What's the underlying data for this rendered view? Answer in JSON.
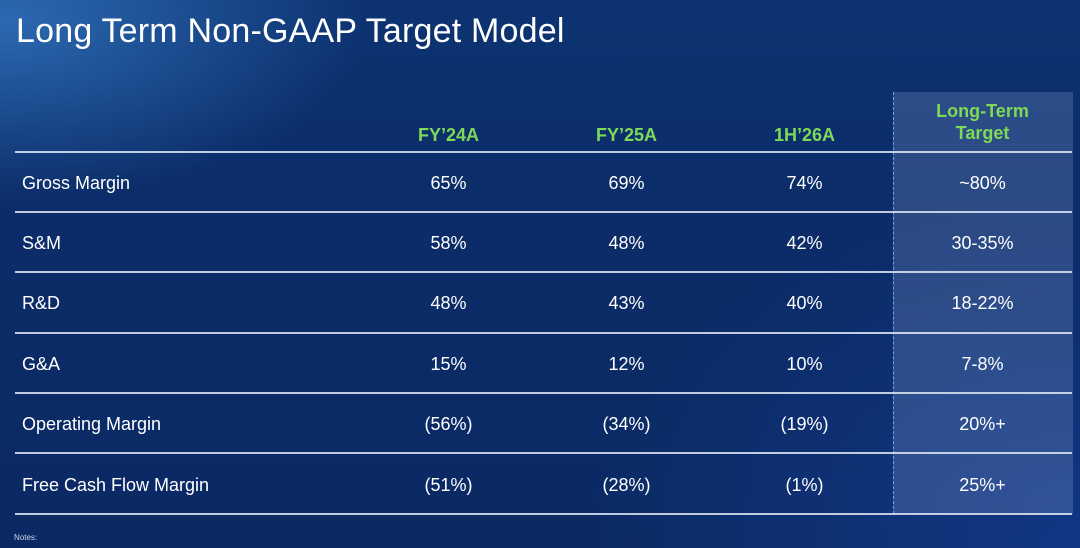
{
  "title": "Long Term Non-GAAP Target Model",
  "columns": [
    "FY’24A",
    "FY’25A",
    "1H’26A"
  ],
  "target_column": [
    "Long-Term",
    "Target"
  ],
  "rows": [
    {
      "label": "Gross Margin",
      "values": [
        "65%",
        "69%",
        "74%",
        "~80%"
      ]
    },
    {
      "label": "S&M",
      "values": [
        "58%",
        "48%",
        "42%",
        "30-35%"
      ]
    },
    {
      "label": "R&D",
      "values": [
        "48%",
        "43%",
        "40%",
        "18-22%"
      ]
    },
    {
      "label": "G&A",
      "values": [
        "15%",
        "12%",
        "10%",
        "7-8%"
      ]
    },
    {
      "label": "Operating Margin",
      "values": [
        "(56%)",
        "(34%)",
        "(19%)",
        "20%+"
      ]
    },
    {
      "label": "Free Cash Flow Margin",
      "values": [
        "(51%)",
        "(28%)",
        "(1%)",
        "25%+"
      ]
    }
  ],
  "notes": "Notes:",
  "colors": {
    "header_green": "#7ed957",
    "background": "#0b2c68",
    "target_panel": "#3a5390"
  }
}
